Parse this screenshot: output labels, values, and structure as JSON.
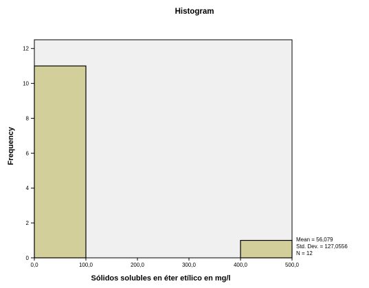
{
  "chart_data": {
    "type": "bar",
    "title": "Histogram",
    "xlabel": "Sólidos solubles en éter etílico en mg/l",
    "ylabel": "Frequency",
    "xlim": [
      0,
      500
    ],
    "ylim": [
      0,
      12.5
    ],
    "x_ticks": [
      0,
      100,
      200,
      300,
      400,
      500
    ],
    "x_tick_labels": [
      "0,0",
      "100,0",
      "200,0",
      "300,0",
      "400,0",
      "500,0"
    ],
    "y_ticks": [
      0,
      2,
      4,
      6,
      8,
      10,
      12
    ],
    "y_tick_labels": [
      "0",
      "2",
      "4",
      "6",
      "8",
      "10",
      "12"
    ],
    "bins": [
      {
        "start": 0,
        "end": 100,
        "count": 11
      },
      {
        "start": 100,
        "end": 200,
        "count": 0
      },
      {
        "start": 200,
        "end": 300,
        "count": 0
      },
      {
        "start": 300,
        "end": 400,
        "count": 0
      },
      {
        "start": 400,
        "end": 500,
        "count": 1
      }
    ],
    "stats": [
      "Mean = 56,079",
      "Std. Dev. = 127,0556",
      "N = 12"
    ],
    "colors": {
      "bar_fill": "#d3cf9b",
      "bar_stroke": "#000000",
      "plot_background": "#f0f0f0"
    },
    "grid": false,
    "legend": "none"
  }
}
